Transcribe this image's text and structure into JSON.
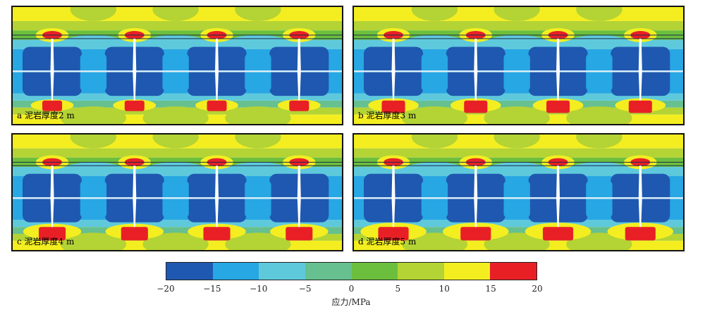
{
  "panels": [
    {
      "label": "a 泥岩厚度2 m",
      "thickness_m": 2
    },
    {
      "label": "b 泥岩厚度3 m",
      "thickness_m": 3
    },
    {
      "label": "c 泥岩厚度4 m",
      "thickness_m": 4
    },
    {
      "label": "d 泥岩厚度5 m",
      "thickness_m": 5
    }
  ],
  "colorbar": {
    "title": "应力/MPa",
    "ticks": [
      "−20",
      "−15",
      "−10",
      "−5",
      "0",
      "5",
      "10",
      "15",
      "20"
    ],
    "colors": [
      "#1f58b0",
      "#27a7e3",
      "#5fc9dc",
      "#66c08f",
      "#6cbf3c",
      "#b4d334",
      "#f4ee21",
      "#e82026"
    ]
  }
}
